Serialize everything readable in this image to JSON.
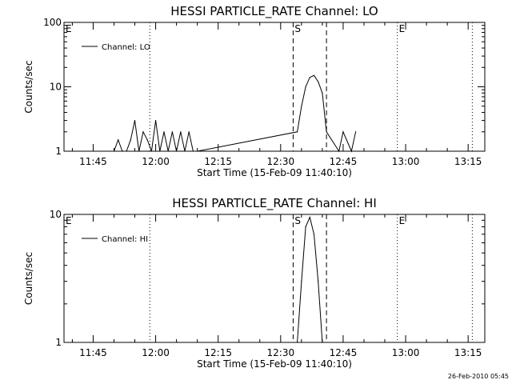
{
  "footer_timestamp": "26-Feb-2010 05:45",
  "chart_data": [
    {
      "type": "line",
      "title": "HESSI PARTICLE_RATE Channel: LO",
      "xlabel": "Start Time (15-Feb-09 11:40:10)",
      "ylabel": "Counts/sec",
      "yscale": "log",
      "ylim": [
        1,
        100
      ],
      "yticks": [
        {
          "value": 1,
          "label": "1"
        },
        {
          "value": 10,
          "label": "10"
        },
        {
          "value": 100,
          "label": "100"
        }
      ],
      "xlim": [
        "11:38",
        "13:19"
      ],
      "xticks": [
        "11:45",
        "12:00",
        "12:15",
        "12:30",
        "12:45",
        "13:00",
        "13:15"
      ],
      "legend": {
        "label": "Channel: LO",
        "position": "top-left"
      },
      "grid": false,
      "markers": [
        {
          "time": "11:38",
          "label": "E",
          "style": "dotted"
        },
        {
          "time": "11:58.6",
          "label": "",
          "style": "dotted"
        },
        {
          "time": "12:33",
          "label": "S",
          "style": "dashed"
        },
        {
          "time": "12:41",
          "label": "",
          "style": "dashed"
        },
        {
          "time": "12:58",
          "label": "E",
          "style": "dotted"
        },
        {
          "time": "13:16",
          "label": "",
          "style": "dotted"
        }
      ],
      "series": [
        {
          "x": [
            "11:50",
            "11:51",
            "11:52",
            "11:53",
            "11:54",
            "11:55",
            "11:56",
            "11:57",
            "11:58",
            "11:59",
            "12:00",
            "12:01",
            "12:02",
            "12:03",
            "12:04",
            "12:05",
            "12:06",
            "12:07",
            "12:08",
            "12:09",
            "12:10",
            "12:34",
            "12:35",
            "12:36",
            "12:37",
            "12:38",
            "12:39",
            "12:40",
            "12:41",
            "12:44",
            "12:45",
            "12:47",
            "12:48"
          ],
          "values": [
            1.0,
            1.5,
            1.0,
            1.0,
            1.5,
            3.0,
            1.0,
            2.0,
            1.5,
            1.0,
            3.0,
            1.0,
            2.0,
            1.0,
            2.0,
            1.0,
            2.0,
            1.0,
            2.0,
            1.0,
            1.0,
            2.0,
            5.0,
            10.0,
            14.0,
            15.0,
            12.0,
            8.0,
            2.0,
            1.0,
            2.0,
            1.0,
            2.0
          ]
        }
      ]
    },
    {
      "type": "line",
      "title": "HESSI PARTICLE_RATE Channel: HI",
      "xlabel": "Start Time (15-Feb-09 11:40:10)",
      "ylabel": "Counts/sec",
      "yscale": "log",
      "ylim": [
        1,
        10
      ],
      "yticks": [
        {
          "value": 1,
          "label": "1"
        },
        {
          "value": 10,
          "label": "10"
        }
      ],
      "xlim": [
        "11:38",
        "13:19"
      ],
      "xticks": [
        "11:45",
        "12:00",
        "12:15",
        "12:30",
        "12:45",
        "13:00",
        "13:15"
      ],
      "legend": {
        "label": "Channel: HI",
        "position": "top-left"
      },
      "grid": false,
      "markers": [
        {
          "time": "11:38",
          "label": "E",
          "style": "dotted"
        },
        {
          "time": "11:58.6",
          "label": "",
          "style": "dotted"
        },
        {
          "time": "12:33",
          "label": "S",
          "style": "dashed"
        },
        {
          "time": "12:41",
          "label": "",
          "style": "dashed"
        },
        {
          "time": "12:58",
          "label": "E",
          "style": "dotted"
        },
        {
          "time": "13:16",
          "label": "",
          "style": "dotted"
        }
      ],
      "series": [
        {
          "x": [
            "12:34",
            "12:35",
            "12:36",
            "12:37",
            "12:38",
            "12:39",
            "12:40"
          ],
          "values": [
            1.0,
            3.0,
            8.0,
            9.5,
            7.0,
            3.0,
            1.0
          ]
        }
      ]
    }
  ]
}
